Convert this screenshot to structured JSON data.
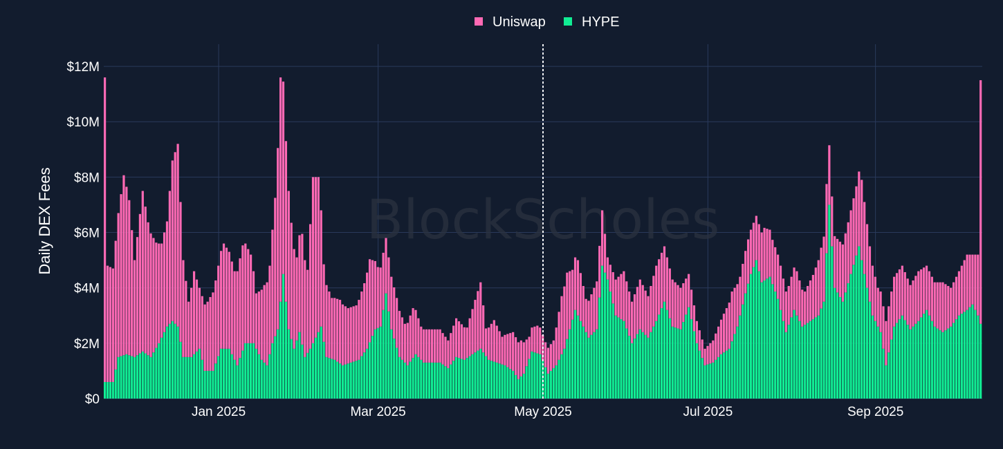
{
  "chart_data": {
    "type": "bar",
    "stacked": true,
    "title": "",
    "xlabel": "",
    "ylabel": "Daily DEX Fees",
    "ylim": [
      0,
      12800000
    ],
    "xlim": [
      "2024-11-20",
      "2025-10-10"
    ],
    "yticks": [
      0,
      2000000,
      4000000,
      6000000,
      8000000,
      10000000,
      12000000
    ],
    "yticklabels": [
      "$0",
      "$2M",
      "$4M",
      "$6M",
      "$8M",
      "$10M",
      "$12M"
    ],
    "xticks": [
      "2025-01-01",
      "2025-03-01",
      "2025-05-01",
      "2025-07-01",
      "2025-09-01"
    ],
    "xticklabels": [
      "Jan 2025",
      "Mar 2025",
      "May 2025",
      "Jul 2025",
      "Sep 2025"
    ],
    "grid": true,
    "legend_position": "top-center",
    "vline": "2025-05-01",
    "watermark": "BlockScholes",
    "colors": {
      "background": "#121c2e",
      "grid": "#2a3a5c",
      "Uniswap": "#ff69b4",
      "HYPE": "#11ed94",
      "vline": "#ffffff"
    },
    "series": [
      {
        "name": "Uniswap",
        "key": "uniswap",
        "anchors": [
          [
            "2024-11-20",
            11.0
          ],
          [
            "2024-11-21",
            4.2
          ],
          [
            "2024-11-23",
            4.1
          ],
          [
            "2024-11-25",
            5.2
          ],
          [
            "2024-11-27",
            6.5
          ],
          [
            "2024-11-29",
            5.6
          ],
          [
            "2024-12-01",
            3.5
          ],
          [
            "2024-12-04",
            5.8
          ],
          [
            "2024-12-06",
            4.8
          ],
          [
            "2024-12-09",
            3.8
          ],
          [
            "2024-12-11",
            3.4
          ],
          [
            "2024-12-13",
            3.8
          ],
          [
            "2024-12-15",
            5.8
          ],
          [
            "2024-12-17",
            6.6
          ],
          [
            "2024-12-19",
            3.5
          ],
          [
            "2024-12-21",
            2.0
          ],
          [
            "2024-12-23",
            3.0
          ],
          [
            "2024-12-25",
            2.2
          ],
          [
            "2024-12-28",
            2.5
          ],
          [
            "2024-12-31",
            3.0
          ],
          [
            "2025-01-03",
            3.8
          ],
          [
            "2025-01-07",
            3.2
          ],
          [
            "2025-01-10",
            3.8
          ],
          [
            "2025-01-13",
            3.2
          ],
          [
            "2025-01-15",
            2.0
          ],
          [
            "2025-01-18",
            2.8
          ],
          [
            "2025-01-20",
            3.2
          ],
          [
            "2025-01-22",
            5.0
          ],
          [
            "2025-01-24",
            8.1
          ],
          [
            "2025-01-26",
            5.8
          ],
          [
            "2025-01-28",
            4.2
          ],
          [
            "2025-01-30",
            3.0
          ],
          [
            "2025-02-01",
            4.0
          ],
          [
            "2025-02-03",
            3.0
          ],
          [
            "2025-02-05",
            6.0
          ],
          [
            "2025-02-07",
            5.6
          ],
          [
            "2025-02-09",
            2.8
          ],
          [
            "2025-02-12",
            2.2
          ],
          [
            "2025-02-15",
            2.3
          ],
          [
            "2025-02-18",
            2.0
          ],
          [
            "2025-02-21",
            2.0
          ],
          [
            "2025-02-24",
            2.5
          ],
          [
            "2025-02-26",
            3.0
          ],
          [
            "2025-03-01",
            2.2
          ],
          [
            "2025-03-04",
            2.0
          ],
          [
            "2025-03-08",
            1.8
          ],
          [
            "2025-03-11",
            1.4
          ],
          [
            "2025-03-14",
            1.8
          ],
          [
            "2025-03-17",
            1.2
          ],
          [
            "2025-03-20",
            1.2
          ],
          [
            "2025-03-24",
            1.2
          ],
          [
            "2025-03-27",
            1.0
          ],
          [
            "2025-03-30",
            1.4
          ],
          [
            "2025-04-03",
            1.1
          ],
          [
            "2025-04-06",
            1.9
          ],
          [
            "2025-04-08",
            2.4
          ],
          [
            "2025-04-10",
            1.0
          ],
          [
            "2025-04-13",
            1.5
          ],
          [
            "2025-04-16",
            1.0
          ],
          [
            "2025-04-20",
            1.4
          ],
          [
            "2025-04-23",
            1.3
          ],
          [
            "2025-04-26",
            0.8
          ],
          [
            "2025-04-29",
            1.0
          ],
          [
            "2025-05-02",
            0.9
          ],
          [
            "2025-05-05",
            1.0
          ],
          [
            "2025-05-08",
            2.1
          ],
          [
            "2025-05-10",
            2.4
          ],
          [
            "2025-05-12",
            1.8
          ],
          [
            "2025-05-14",
            2.0
          ],
          [
            "2025-05-17",
            1.2
          ],
          [
            "2025-05-20",
            1.6
          ],
          [
            "2025-05-23",
            2.0
          ],
          [
            "2025-05-25",
            0.8
          ],
          [
            "2025-05-28",
            1.3
          ],
          [
            "2025-05-31",
            1.8
          ],
          [
            "2025-06-03",
            1.5
          ],
          [
            "2025-06-06",
            1.8
          ],
          [
            "2025-06-09",
            1.5
          ],
          [
            "2025-06-12",
            2.0
          ],
          [
            "2025-06-15",
            2.0
          ],
          [
            "2025-06-18",
            1.7
          ],
          [
            "2025-06-21",
            1.5
          ],
          [
            "2025-06-24",
            1.2
          ],
          [
            "2025-06-27",
            0.8
          ],
          [
            "2025-06-30",
            0.6
          ],
          [
            "2025-07-03",
            0.8
          ],
          [
            "2025-07-07",
            1.4
          ],
          [
            "2025-07-10",
            1.8
          ],
          [
            "2025-07-13",
            1.4
          ],
          [
            "2025-07-16",
            1.6
          ],
          [
            "2025-07-19",
            1.6
          ],
          [
            "2025-07-22",
            1.9
          ],
          [
            "2025-07-25",
            1.6
          ],
          [
            "2025-07-28",
            1.6
          ],
          [
            "2025-07-31",
            1.4
          ],
          [
            "2025-08-03",
            1.6
          ],
          [
            "2025-08-06",
            1.2
          ],
          [
            "2025-08-09",
            1.6
          ],
          [
            "2025-08-12",
            2.2
          ],
          [
            "2025-08-14",
            2.5
          ],
          [
            "2025-08-16",
            1.8
          ],
          [
            "2025-08-19",
            2.0
          ],
          [
            "2025-08-22",
            2.2
          ],
          [
            "2025-08-25",
            2.5
          ],
          [
            "2025-08-27",
            2.9
          ],
          [
            "2025-08-30",
            2.0
          ],
          [
            "2025-09-02",
            1.4
          ],
          [
            "2025-09-05",
            1.6
          ],
          [
            "2025-09-08",
            1.8
          ],
          [
            "2025-09-11",
            1.8
          ],
          [
            "2025-09-14",
            1.6
          ],
          [
            "2025-09-17",
            1.8
          ],
          [
            "2025-09-20",
            1.6
          ],
          [
            "2025-09-23",
            1.6
          ],
          [
            "2025-09-26",
            1.8
          ],
          [
            "2025-09-29",
            1.4
          ],
          [
            "2025-10-02",
            1.6
          ],
          [
            "2025-10-05",
            2.0
          ],
          [
            "2025-10-07",
            1.8
          ],
          [
            "2025-10-09",
            2.2
          ],
          [
            "2025-10-10",
            8.8
          ]
        ]
      },
      {
        "name": "HYPE",
        "key": "hype",
        "anchors": [
          [
            "2024-11-20",
            0.6
          ],
          [
            "2024-11-21",
            0.6
          ],
          [
            "2024-11-23",
            0.6
          ],
          [
            "2024-11-25",
            1.5
          ],
          [
            "2024-11-28",
            1.6
          ],
          [
            "2024-12-01",
            1.5
          ],
          [
            "2024-12-04",
            1.7
          ],
          [
            "2024-12-07",
            1.5
          ],
          [
            "2024-12-10",
            2.0
          ],
          [
            "2024-12-13",
            2.6
          ],
          [
            "2024-12-15",
            2.8
          ],
          [
            "2024-12-17",
            2.6
          ],
          [
            "2024-12-19",
            1.5
          ],
          [
            "2024-12-22",
            1.5
          ],
          [
            "2024-12-25",
            1.8
          ],
          [
            "2024-12-27",
            1.0
          ],
          [
            "2024-12-30",
            1.0
          ],
          [
            "2025-01-02",
            1.8
          ],
          [
            "2025-01-05",
            1.8
          ],
          [
            "2025-01-08",
            1.2
          ],
          [
            "2025-01-11",
            2.0
          ],
          [
            "2025-01-14",
            2.0
          ],
          [
            "2025-01-17",
            1.4
          ],
          [
            "2025-01-19",
            1.2
          ],
          [
            "2025-01-21",
            2.0
          ],
          [
            "2025-01-23",
            2.5
          ],
          [
            "2025-01-25",
            4.5
          ],
          [
            "2025-01-27",
            2.5
          ],
          [
            "2025-01-29",
            1.8
          ],
          [
            "2025-01-31",
            2.4
          ],
          [
            "2025-02-02",
            1.5
          ],
          [
            "2025-02-04",
            1.8
          ],
          [
            "2025-02-06",
            2.2
          ],
          [
            "2025-02-08",
            2.6
          ],
          [
            "2025-02-10",
            1.5
          ],
          [
            "2025-02-13",
            1.4
          ],
          [
            "2025-02-16",
            1.2
          ],
          [
            "2025-02-19",
            1.3
          ],
          [
            "2025-02-22",
            1.4
          ],
          [
            "2025-02-25",
            1.8
          ],
          [
            "2025-02-28",
            2.5
          ],
          [
            "2025-03-02",
            2.6
          ],
          [
            "2025-03-04",
            3.8
          ],
          [
            "2025-03-06",
            2.5
          ],
          [
            "2025-03-09",
            1.5
          ],
          [
            "2025-03-12",
            1.2
          ],
          [
            "2025-03-15",
            1.6
          ],
          [
            "2025-03-18",
            1.3
          ],
          [
            "2025-03-21",
            1.3
          ],
          [
            "2025-03-24",
            1.3
          ],
          [
            "2025-03-27",
            1.1
          ],
          [
            "2025-03-30",
            1.5
          ],
          [
            "2025-04-02",
            1.4
          ],
          [
            "2025-04-05",
            1.6
          ],
          [
            "2025-04-08",
            1.8
          ],
          [
            "2025-04-11",
            1.4
          ],
          [
            "2025-04-14",
            1.3
          ],
          [
            "2025-04-17",
            1.2
          ],
          [
            "2025-04-20",
            1.0
          ],
          [
            "2025-04-22",
            0.7
          ],
          [
            "2025-04-24",
            0.9
          ],
          [
            "2025-04-27",
            1.7
          ],
          [
            "2025-04-30",
            1.6
          ],
          [
            "2025-05-03",
            0.9
          ],
          [
            "2025-05-06",
            1.2
          ],
          [
            "2025-05-09",
            1.8
          ],
          [
            "2025-05-11",
            2.5
          ],
          [
            "2025-05-13",
            3.2
          ],
          [
            "2025-05-15",
            2.8
          ],
          [
            "2025-05-18",
            2.2
          ],
          [
            "2025-05-21",
            2.5
          ],
          [
            "2025-05-23",
            4.8
          ],
          [
            "2025-05-25",
            4.3
          ],
          [
            "2025-05-28",
            3.0
          ],
          [
            "2025-05-31",
            2.8
          ],
          [
            "2025-06-03",
            2.0
          ],
          [
            "2025-06-06",
            2.5
          ],
          [
            "2025-06-09",
            2.2
          ],
          [
            "2025-06-12",
            2.8
          ],
          [
            "2025-06-15",
            3.5
          ],
          [
            "2025-06-18",
            2.6
          ],
          [
            "2025-06-21",
            2.5
          ],
          [
            "2025-06-24",
            3.3
          ],
          [
            "2025-06-27",
            2.0
          ],
          [
            "2025-06-30",
            1.2
          ],
          [
            "2025-07-03",
            1.3
          ],
          [
            "2025-07-06",
            1.6
          ],
          [
            "2025-07-09",
            1.8
          ],
          [
            "2025-07-12",
            2.6
          ],
          [
            "2025-07-15",
            3.8
          ],
          [
            "2025-07-17",
            4.5
          ],
          [
            "2025-07-19",
            5.0
          ],
          [
            "2025-07-21",
            4.2
          ],
          [
            "2025-07-24",
            4.4
          ],
          [
            "2025-07-27",
            3.6
          ],
          [
            "2025-07-30",
            2.4
          ],
          [
            "2025-08-02",
            3.2
          ],
          [
            "2025-08-05",
            2.6
          ],
          [
            "2025-08-08",
            2.8
          ],
          [
            "2025-08-11",
            3.0
          ],
          [
            "2025-08-13",
            3.5
          ],
          [
            "2025-08-15",
            7.0
          ],
          [
            "2025-08-17",
            4.0
          ],
          [
            "2025-08-20",
            3.5
          ],
          [
            "2025-08-23",
            4.5
          ],
          [
            "2025-08-26",
            5.5
          ],
          [
            "2025-08-28",
            4.5
          ],
          [
            "2025-08-31",
            3.0
          ],
          [
            "2025-09-03",
            2.4
          ],
          [
            "2025-09-05",
            1.2
          ],
          [
            "2025-09-08",
            2.6
          ],
          [
            "2025-09-11",
            3.0
          ],
          [
            "2025-09-14",
            2.5
          ],
          [
            "2025-09-17",
            2.8
          ],
          [
            "2025-09-20",
            3.2
          ],
          [
            "2025-09-23",
            2.6
          ],
          [
            "2025-09-26",
            2.4
          ],
          [
            "2025-09-29",
            2.6
          ],
          [
            "2025-10-02",
            3.0
          ],
          [
            "2025-10-05",
            3.2
          ],
          [
            "2025-10-07",
            3.4
          ],
          [
            "2025-10-09",
            3.0
          ],
          [
            "2025-10-10",
            2.7
          ]
        ]
      }
    ]
  }
}
